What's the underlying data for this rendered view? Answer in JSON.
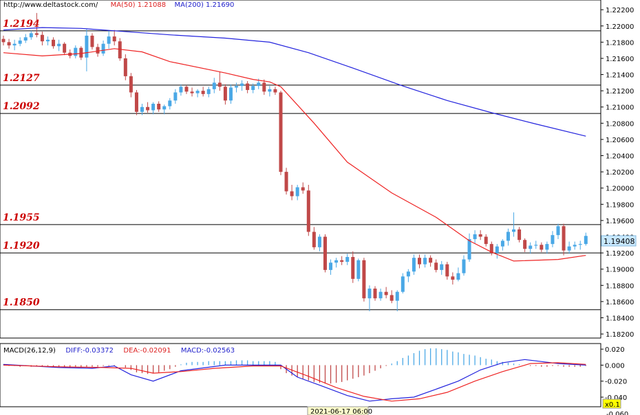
{
  "header": {
    "url": "http://www.deltastock.com/",
    "ma50_label": "MA(50)",
    "ma50_value": "1.21088",
    "ma200_label": "MA(200)",
    "ma200_value": "1.21690"
  },
  "macd_header": {
    "name": "MACD(26,12,9)",
    "diff": "DIFF:-0.03372",
    "dea": "DEA:-0.02091",
    "macd": "MACD:-0.02563"
  },
  "current_price": "1.19408",
  "time_label": "2021-06-17 06:00",
  "zoom_label": "x0.1",
  "colors": {
    "up": "#4aa8e6",
    "down": "#c04848",
    "ma50": "#ee2222",
    "ma200": "#2222dd",
    "level": "#cc0000",
    "grid": "#000000",
    "price_box": "#c8e8ff"
  },
  "chart_data": [
    {
      "type": "candlestick",
      "ylim": [
        1.1815,
        1.2232
      ],
      "y_ticks": [
        "1.22200",
        "1.22000",
        "1.21800",
        "1.21600",
        "1.21400",
        "1.21200",
        "1.21000",
        "1.20800",
        "1.20600",
        "1.20400",
        "1.20200",
        "1.20000",
        "1.19800",
        "1.19600",
        "1.19400",
        "1.19200",
        "1.19000",
        "1.18800",
        "1.18600",
        "1.18400",
        "1.18200"
      ],
      "levels": [
        "1.2194",
        "1.2127",
        "1.2092",
        "1.1955",
        "1.1920",
        "1.1850"
      ],
      "candles": [
        [
          1.2184,
          1.2188,
          1.2176,
          1.218
        ],
        [
          1.218,
          1.2184,
          1.2172,
          1.2176
        ],
        [
          1.2176,
          1.2183,
          1.217,
          1.2178
        ],
        [
          1.2178,
          1.2186,
          1.2175,
          1.2182
        ],
        [
          1.2182,
          1.219,
          1.2179,
          1.2186
        ],
        [
          1.2186,
          1.2194,
          1.2183,
          1.2191
        ],
        [
          1.2191,
          1.2216,
          1.2186,
          1.2189
        ],
        [
          1.2189,
          1.2193,
          1.2176,
          1.2181
        ],
        [
          1.2181,
          1.2187,
          1.2176,
          1.2183
        ],
        [
          1.2183,
          1.2186,
          1.2172,
          1.2175
        ],
        [
          1.2175,
          1.2183,
          1.2169,
          1.2178
        ],
        [
          1.2178,
          1.218,
          1.2164,
          1.2167
        ],
        [
          1.2167,
          1.2171,
          1.216,
          1.2163
        ],
        [
          1.2163,
          1.2176,
          1.216,
          1.2173
        ],
        [
          1.2173,
          1.2175,
          1.2158,
          1.2161
        ],
        [
          1.2161,
          1.2196,
          1.2144,
          1.2188
        ],
        [
          1.2188,
          1.2191,
          1.2171,
          1.2174
        ],
        [
          1.2174,
          1.2178,
          1.2162,
          1.2166
        ],
        [
          1.2166,
          1.2182,
          1.2163,
          1.2178
        ],
        [
          1.2178,
          1.2194,
          1.2172,
          1.2187
        ],
        [
          1.2187,
          1.2195,
          1.2176,
          1.2181
        ],
        [
          1.2181,
          1.2185,
          1.2157,
          1.216
        ],
        [
          1.216,
          1.2165,
          1.2133,
          1.2138
        ],
        [
          1.2138,
          1.2142,
          1.2112,
          1.2118
        ],
        [
          1.2118,
          1.2121,
          1.209,
          1.2094
        ],
        [
          1.2094,
          1.2104,
          1.209,
          1.21
        ],
        [
          1.21,
          1.2106,
          1.2093,
          1.2096
        ],
        [
          1.2096,
          1.2106,
          1.2091,
          1.2104
        ],
        [
          1.2104,
          1.2107,
          1.2094,
          1.2097
        ],
        [
          1.2097,
          1.2103,
          1.2091,
          1.2101
        ],
        [
          1.2101,
          1.2111,
          1.2097,
          1.2108
        ],
        [
          1.2108,
          1.2122,
          1.2104,
          1.2118
        ],
        [
          1.2118,
          1.2128,
          1.2114,
          1.2125
        ],
        [
          1.2125,
          1.2127,
          1.2116,
          1.2119
        ],
        [
          1.2119,
          1.2124,
          1.2113,
          1.2117
        ],
        [
          1.2117,
          1.2122,
          1.2112,
          1.212
        ],
        [
          1.212,
          1.2125,
          1.2113,
          1.2116
        ],
        [
          1.2116,
          1.2125,
          1.2112,
          1.2122
        ],
        [
          1.2122,
          1.2136,
          1.2117,
          1.213
        ],
        [
          1.213,
          1.2143,
          1.212,
          1.2125
        ],
        [
          1.2125,
          1.2128,
          1.2103,
          1.2108
        ],
        [
          1.2108,
          1.2128,
          1.2104,
          1.2124
        ],
        [
          1.2124,
          1.213,
          1.2118,
          1.2126
        ],
        [
          1.2126,
          1.2133,
          1.212,
          1.2129
        ],
        [
          1.2129,
          1.2132,
          1.2117,
          1.2121
        ],
        [
          1.2121,
          1.2129,
          1.2117,
          1.2126
        ],
        [
          1.2126,
          1.2135,
          1.2122,
          1.213
        ],
        [
          1.213,
          1.2134,
          1.2115,
          1.2119
        ],
        [
          1.2119,
          1.2126,
          1.2113,
          1.2122
        ],
        [
          1.2122,
          1.2125,
          1.2115,
          1.2118
        ],
        [
          1.2118,
          1.212,
          1.2016,
          1.202
        ],
        [
          1.202,
          1.2025,
          1.1992,
          1.1996
        ],
        [
          1.1996,
          1.2004,
          1.1985,
          1.199
        ],
        [
          1.199,
          1.2004,
          1.1985,
          1.2001
        ],
        [
          1.2001,
          1.2007,
          1.1993,
          1.1997
        ],
        [
          1.1997,
          1.2004,
          1.1941,
          1.1946
        ],
        [
          1.1946,
          1.1952,
          1.1924,
          1.1927
        ],
        [
          1.1927,
          1.1943,
          1.1922,
          1.194
        ],
        [
          1.194,
          1.1943,
          1.1896,
          1.1899
        ],
        [
          1.1899,
          1.1912,
          1.1893,
          1.1908
        ],
        [
          1.1908,
          1.1914,
          1.1902,
          1.1911
        ],
        [
          1.1911,
          1.1916,
          1.1905,
          1.1909
        ],
        [
          1.1909,
          1.1919,
          1.1905,
          1.1915
        ],
        [
          1.1915,
          1.1922,
          1.1883,
          1.1888
        ],
        [
          1.1888,
          1.1913,
          1.1885,
          1.1911
        ],
        [
          1.1911,
          1.1914,
          1.186,
          1.1864
        ],
        [
          1.1864,
          1.188,
          1.1848,
          1.1876
        ],
        [
          1.1876,
          1.1879,
          1.1861,
          1.1864
        ],
        [
          1.1864,
          1.1876,
          1.1861,
          1.1872
        ],
        [
          1.1872,
          1.1878,
          1.1864,
          1.1868
        ],
        [
          1.1868,
          1.1874,
          1.1858,
          1.1861
        ],
        [
          1.1861,
          1.1874,
          1.1848,
          1.1872
        ],
        [
          1.1872,
          1.1895,
          1.187,
          1.1891
        ],
        [
          1.1891,
          1.19,
          1.1884,
          1.1897
        ],
        [
          1.1897,
          1.1918,
          1.1893,
          1.1914
        ],
        [
          1.1914,
          1.1918,
          1.1901,
          1.1906
        ],
        [
          1.1906,
          1.1918,
          1.1902,
          1.1914
        ],
        [
          1.1914,
          1.1917,
          1.1903,
          1.1908
        ],
        [
          1.1908,
          1.1912,
          1.1896,
          1.1899
        ],
        [
          1.1899,
          1.191,
          1.1893,
          1.1906
        ],
        [
          1.1906,
          1.1909,
          1.1887,
          1.1891
        ],
        [
          1.1891,
          1.1896,
          1.1881,
          1.1887
        ],
        [
          1.1887,
          1.1902,
          1.1885,
          1.1895
        ],
        [
          1.1895,
          1.1917,
          1.1892,
          1.1912
        ],
        [
          1.1912,
          1.1944,
          1.1909,
          1.1937
        ],
        [
          1.1937,
          1.1948,
          1.1932,
          1.1943
        ],
        [
          1.1943,
          1.1948,
          1.1936,
          1.194
        ],
        [
          1.194,
          1.1943,
          1.1928,
          1.1931
        ],
        [
          1.1931,
          1.1934,
          1.1917,
          1.192
        ],
        [
          1.192,
          1.1931,
          1.1913,
          1.1928
        ],
        [
          1.1928,
          1.1937,
          1.1923,
          1.1935
        ],
        [
          1.1935,
          1.195,
          1.1929,
          1.1946
        ],
        [
          1.1946,
          1.197,
          1.194,
          1.1949
        ],
        [
          1.1949,
          1.1952,
          1.1933,
          1.1936
        ],
        [
          1.1936,
          1.1938,
          1.1921,
          1.1925
        ],
        [
          1.1925,
          1.1933,
          1.1919,
          1.1929
        ],
        [
          1.1929,
          1.1935,
          1.1925,
          1.193
        ],
        [
          1.193,
          1.1933,
          1.1921,
          1.1924
        ],
        [
          1.1924,
          1.1934,
          1.1919,
          1.1931
        ],
        [
          1.1931,
          1.1947,
          1.1927,
          1.1942
        ],
        [
          1.1942,
          1.1956,
          1.1937,
          1.1953
        ],
        [
          1.1953,
          1.1956,
          1.1917,
          1.1923
        ],
        [
          1.1923,
          1.1934,
          1.1919,
          1.1928
        ],
        [
          1.1928,
          1.1934,
          1.1924,
          1.193
        ],
        [
          1.193,
          1.1935,
          1.1924,
          1.1931
        ],
        [
          1.1931,
          1.1945,
          1.1929,
          1.1941
        ]
      ],
      "ma50": [
        [
          0,
          1.2167
        ],
        [
          7,
          1.2163
        ],
        [
          14,
          1.2166
        ],
        [
          20,
          1.2172
        ],
        [
          25,
          1.2168
        ],
        [
          30,
          1.2156
        ],
        [
          40,
          1.2142
        ],
        [
          45,
          1.2134
        ],
        [
          48,
          1.2131
        ],
        [
          50,
          1.2125
        ],
        [
          56,
          1.208
        ],
        [
          62,
          1.2032
        ],
        [
          70,
          1.1994
        ],
        [
          78,
          1.1964
        ],
        [
          84,
          1.1935
        ],
        [
          88,
          1.1921
        ],
        [
          92,
          1.191
        ],
        [
          100,
          1.1912
        ],
        [
          105,
          1.1917
        ]
      ],
      "ma200": [
        [
          0,
          1.2195
        ],
        [
          7,
          1.2198
        ],
        [
          14,
          1.2197
        ],
        [
          20,
          1.2194
        ],
        [
          30,
          1.2189
        ],
        [
          40,
          1.2185
        ],
        [
          48,
          1.218
        ],
        [
          55,
          1.2167
        ],
        [
          63,
          1.2148
        ],
        [
          72,
          1.2126
        ],
        [
          80,
          1.2108
        ],
        [
          88,
          1.2093
        ],
        [
          96,
          1.2079
        ],
        [
          105,
          1.2064
        ]
      ]
    },
    {
      "type": "macd",
      "ylim": [
        -0.052,
        0.027
      ],
      "y_ticks": [
        "0.020",
        "0.000",
        "-0.020",
        "-0.040"
      ],
      "bottom_tick": "-0.060",
      "hist": [
        0.001,
        -0.001,
        -0.001,
        -0.002,
        -0.001,
        -0.002,
        -0.001,
        -0.002,
        -0.001,
        -0.002,
        -0.002,
        -0.003,
        -0.003,
        -0.002,
        -0.003,
        -0.002,
        -0.002,
        -0.002,
        -0.001,
        -0.001,
        -0.001,
        0.0,
        -0.003,
        -0.006,
        -0.009,
        -0.01,
        -0.011,
        -0.01,
        -0.009,
        -0.007,
        -0.005,
        -0.002,
        0.001,
        0.003,
        0.004,
        0.004,
        0.004,
        0.005,
        0.005,
        0.005,
        0.005,
        0.005,
        0.006,
        0.006,
        0.006,
        0.005,
        0.005,
        0.005,
        0.005,
        0.004,
        -0.005,
        -0.01,
        -0.013,
        -0.015,
        -0.017,
        -0.019,
        -0.021,
        -0.022,
        -0.023,
        -0.023,
        -0.022,
        -0.021,
        -0.019,
        -0.017,
        -0.015,
        -0.013,
        -0.01,
        -0.007,
        -0.004,
        -0.001,
        0.002,
        0.005,
        0.009,
        0.012,
        0.015,
        0.018,
        0.02,
        0.021,
        0.021,
        0.02,
        0.019,
        0.017,
        0.016,
        0.014,
        0.013,
        0.012,
        0.01,
        0.008,
        0.007,
        0.005,
        0.004,
        0.003,
        0.002,
        0.001,
        0.0,
        -0.001,
        -0.001,
        -0.002,
        -0.002,
        -0.001,
        -0.001,
        -0.002,
        -0.002,
        -0.002,
        -0.002,
        -0.001
      ],
      "diff": [
        [
          0,
          0.001
        ],
        [
          10,
          -0.003
        ],
        [
          16,
          -0.004
        ],
        [
          20,
          -0.001
        ],
        [
          23,
          -0.012
        ],
        [
          27,
          -0.02
        ],
        [
          32,
          -0.007
        ],
        [
          40,
          0.0
        ],
        [
          50,
          0.0
        ],
        [
          53,
          -0.015
        ],
        [
          57,
          -0.025
        ],
        [
          62,
          -0.038
        ],
        [
          66,
          -0.045
        ],
        [
          70,
          -0.042
        ],
        [
          74,
          -0.04
        ],
        [
          78,
          -0.03
        ],
        [
          82,
          -0.02
        ],
        [
          86,
          -0.006
        ],
        [
          90,
          0.003
        ],
        [
          94,
          0.007
        ],
        [
          100,
          0.002
        ],
        [
          105,
          0.0
        ]
      ],
      "dea": [
        [
          0,
          0.0
        ],
        [
          10,
          -0.002
        ],
        [
          18,
          -0.003
        ],
        [
          23,
          -0.004
        ],
        [
          27,
          -0.01
        ],
        [
          32,
          -0.008
        ],
        [
          38,
          -0.004
        ],
        [
          45,
          -0.001
        ],
        [
          50,
          -0.001
        ],
        [
          55,
          -0.014
        ],
        [
          60,
          -0.028
        ],
        [
          65,
          -0.039
        ],
        [
          70,
          -0.045
        ],
        [
          75,
          -0.042
        ],
        [
          80,
          -0.034
        ],
        [
          85,
          -0.02
        ],
        [
          90,
          -0.008
        ],
        [
          95,
          0.002
        ],
        [
          100,
          0.003
        ],
        [
          105,
          0.001
        ]
      ]
    }
  ]
}
